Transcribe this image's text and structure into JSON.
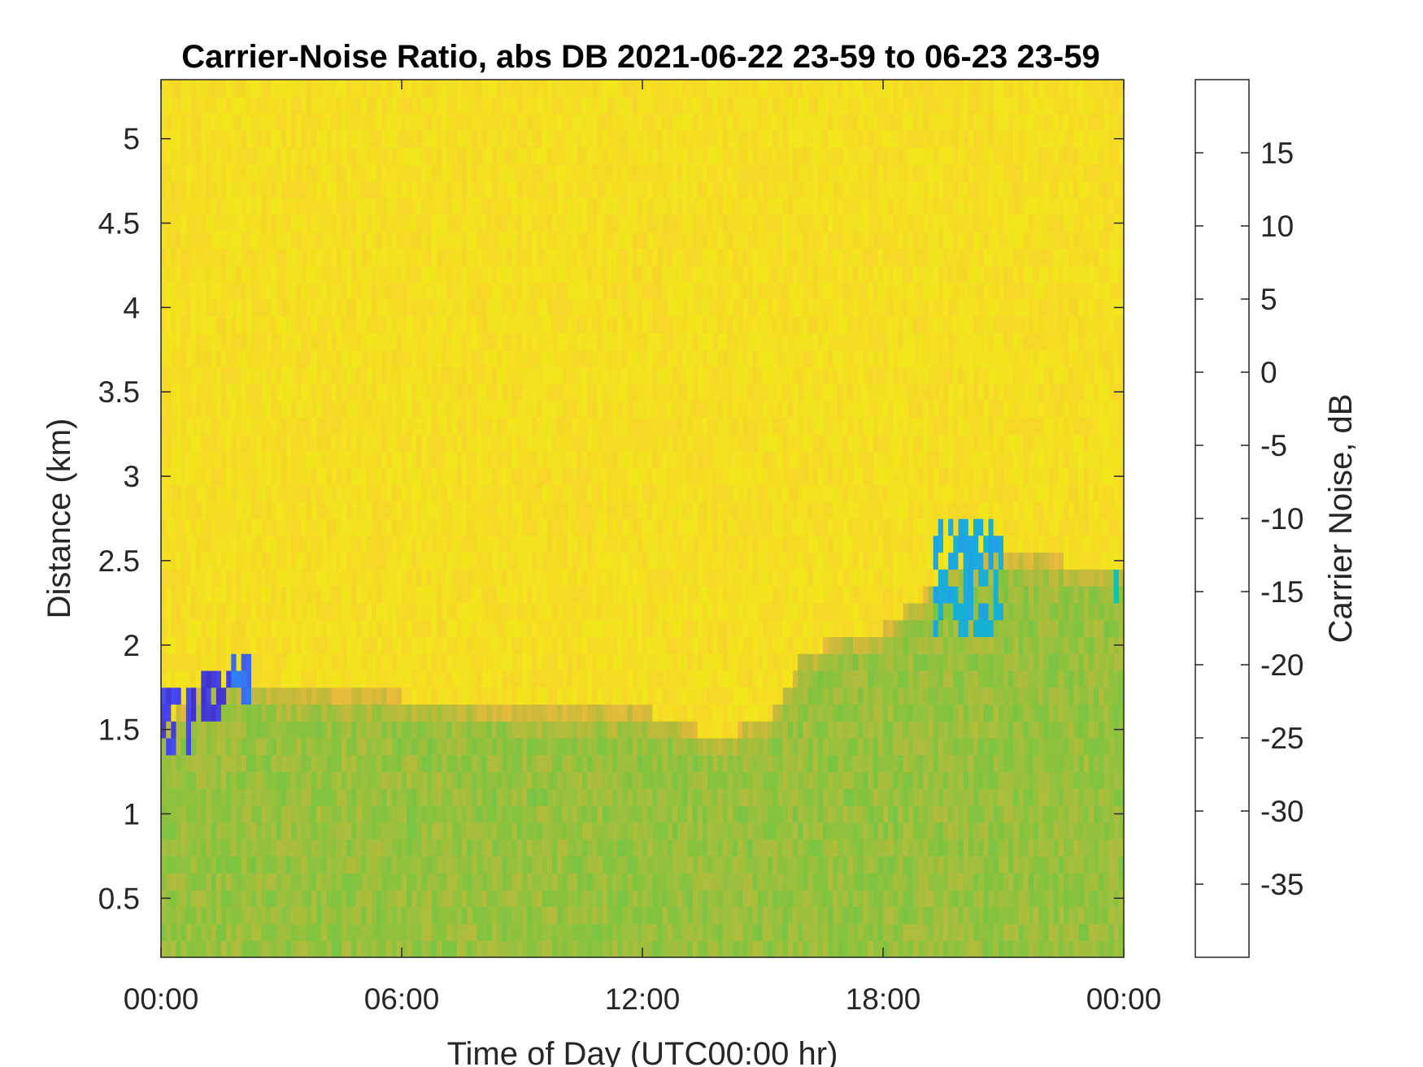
{
  "chart_data": {
    "type": "heatmap",
    "title": "Carrier-Noise Ratio, abs DB 2021-06-22 23-59 to 06-23 23-59",
    "xlabel": "Time of Day (UTC00:00 hr)",
    "ylabel": "Distance (km)",
    "colorbar_label": "Carrier Noise, dB",
    "x_range_hours": [
      0,
      24
    ],
    "x_ticks": [
      {
        "value": 0,
        "label": "00:00"
      },
      {
        "value": 6,
        "label": "06:00"
      },
      {
        "value": 12,
        "label": "12:00"
      },
      {
        "value": 18,
        "label": "18:00"
      },
      {
        "value": 24,
        "label": "00:00"
      }
    ],
    "ylim": [
      0.15,
      5.35
    ],
    "y_ticks": [
      {
        "value": 0.5,
        "label": "0.5"
      },
      {
        "value": 1,
        "label": "1"
      },
      {
        "value": 1.5,
        "label": "1.5"
      },
      {
        "value": 2,
        "label": "2"
      },
      {
        "value": 2.5,
        "label": "2.5"
      },
      {
        "value": 3,
        "label": "3"
      },
      {
        "value": 3.5,
        "label": "3.5"
      },
      {
        "value": 4,
        "label": "4"
      },
      {
        "value": 4.5,
        "label": "4.5"
      },
      {
        "value": 5,
        "label": "5"
      }
    ],
    "color_range": [
      -40,
      20
    ],
    "colorbar_ticks": [
      {
        "value": 15,
        "label": "15"
      },
      {
        "value": 10,
        "label": "10"
      },
      {
        "value": 5,
        "label": "5"
      },
      {
        "value": 0,
        "label": "0"
      },
      {
        "value": -5,
        "label": "-5"
      },
      {
        "value": -10,
        "label": "-10"
      },
      {
        "value": -15,
        "label": "-15"
      },
      {
        "value": -20,
        "label": "-20"
      },
      {
        "value": -25,
        "label": "-25"
      },
      {
        "value": -30,
        "label": "-30"
      },
      {
        "value": -35,
        "label": "-35"
      }
    ],
    "colormap": [
      "#3e26a8",
      "#4745f4",
      "#2e87f7",
      "#1caadf",
      "#02c7ae",
      "#2ebf8e",
      "#80c43f",
      "#c5b93a",
      "#fdbc3c",
      "#f2e51c",
      "#f9fb0e"
    ],
    "background_value": -33,
    "boundary_height_km": [
      {
        "t": 0,
        "h": 1.5
      },
      {
        "t": 1,
        "h": 1.75
      },
      {
        "t": 2,
        "h": 1.8
      },
      {
        "t": 3,
        "h": 1.72
      },
      {
        "t": 6,
        "h": 1.7
      },
      {
        "t": 9,
        "h": 1.62
      },
      {
        "t": 12,
        "h": 1.62
      },
      {
        "t": 14,
        "h": 1.45
      },
      {
        "t": 15.3,
        "h": 1.6
      },
      {
        "t": 16,
        "h": 1.95
      },
      {
        "t": 17,
        "h": 2.05
      },
      {
        "t": 18,
        "h": 2.1
      },
      {
        "t": 19,
        "h": 2.3
      },
      {
        "t": 20,
        "h": 2.5
      },
      {
        "t": 21,
        "h": 2.55
      },
      {
        "t": 24,
        "h": 2.45
      }
    ],
    "low_level_value": -18,
    "strong_echo_features": [
      {
        "t_start": 0.05,
        "t_end": 0.7,
        "h_start": 1.3,
        "h_end": 1.7,
        "value": 15
      },
      {
        "t_start": 0.7,
        "t_end": 1.7,
        "h_start": 1.5,
        "h_end": 1.8,
        "value": 16
      },
      {
        "t_start": 1.8,
        "t_end": 2.3,
        "h_start": 1.6,
        "h_end": 1.9,
        "value": 10
      },
      {
        "t_start": 19.3,
        "t_end": 21.0,
        "h_start": 2.0,
        "h_end": 2.7,
        "value": 2
      },
      {
        "t_start": 23.6,
        "t_end": 23.9,
        "h_start": 2.2,
        "h_end": 2.45,
        "value": -2
      }
    ]
  }
}
